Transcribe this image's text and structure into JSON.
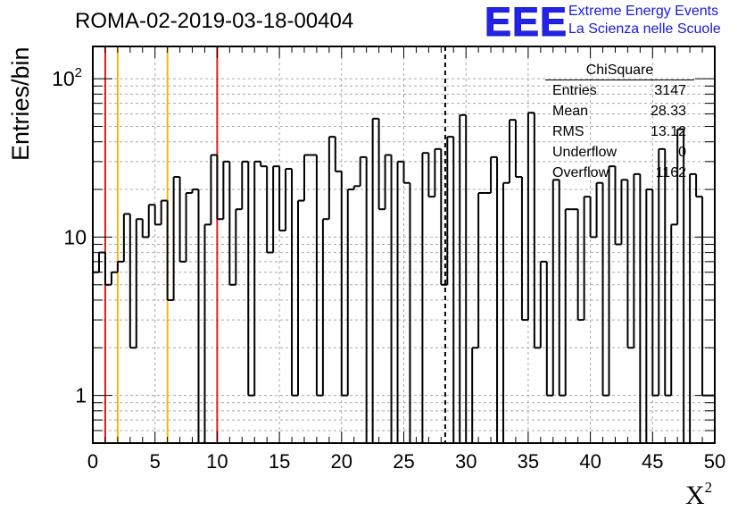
{
  "header": {
    "run_title": "ROMA-02-2019-03-18-00404",
    "logo_text": "EEE",
    "logo_line1": "Extreme Energy Events",
    "logo_line2": "La Scienza nelle Scuole"
  },
  "colors": {
    "histogram": "#000000",
    "grid": "#a8a8a8",
    "red_line": "#e01b1b",
    "yellow_line": "#f0b90b",
    "logo_blue": "#2323e6"
  },
  "stats": {
    "title": "ChiSquare",
    "rows": [
      {
        "name": "Entries",
        "value": "3147"
      },
      {
        "name": "Mean",
        "value": "28.33"
      },
      {
        "name": "RMS",
        "value": "13.12"
      },
      {
        "name": "Underflow",
        "value": "0"
      },
      {
        "name": "Overflow",
        "value": "1162"
      }
    ]
  },
  "chart_data": {
    "type": "histogram",
    "title": "ROMA-02-2019-03-18-00404",
    "xlabel": "X",
    "xlabel_superscript": "2",
    "ylabel": "Entries/bin",
    "xlim": [
      0,
      50
    ],
    "ylim": [
      0.5,
      160
    ],
    "yscale": "log",
    "grid": true,
    "bin_width": 0.5,
    "x_ticks": [
      0,
      5,
      10,
      15,
      20,
      25,
      30,
      35,
      40,
      45,
      50
    ],
    "y_ticks": [
      {
        "value": 1,
        "label": "1"
      },
      {
        "value": 10,
        "label": "10"
      },
      {
        "value": 100,
        "label": "10",
        "exponent": "2"
      }
    ],
    "counts": [
      6,
      8,
      5,
      6,
      7,
      14,
      2,
      13,
      10,
      16,
      12,
      17,
      4,
      24,
      7,
      19,
      20,
      0,
      12,
      33,
      13,
      30,
      5,
      15,
      30,
      1,
      30,
      28,
      8,
      28,
      11,
      27,
      1,
      17,
      33,
      33,
      1,
      13,
      43,
      26,
      1,
      20,
      21,
      32,
      0,
      56,
      15,
      33,
      0,
      30,
      22,
      0,
      0,
      34,
      18,
      36,
      5,
      43,
      0,
      59,
      0,
      2,
      19,
      19,
      32,
      0,
      22,
      55,
      24,
      3,
      61,
      2,
      7,
      1,
      23,
      1,
      15,
      15,
      3,
      18,
      10,
      22,
      1,
      28,
      9,
      23,
      2,
      25,
      0,
      20,
      1,
      36,
      1,
      12,
      48,
      0,
      25,
      18,
      1,
      1
    ],
    "vertical_lines": [
      {
        "x": 1,
        "color": "red",
        "style": "solid"
      },
      {
        "x": 2,
        "color": "yellow",
        "style": "solid"
      },
      {
        "x": 6,
        "color": "yellow",
        "style": "solid"
      },
      {
        "x": 10,
        "color": "red",
        "style": "solid"
      },
      {
        "x": 28.33,
        "color": "black",
        "style": "dashed"
      }
    ]
  }
}
